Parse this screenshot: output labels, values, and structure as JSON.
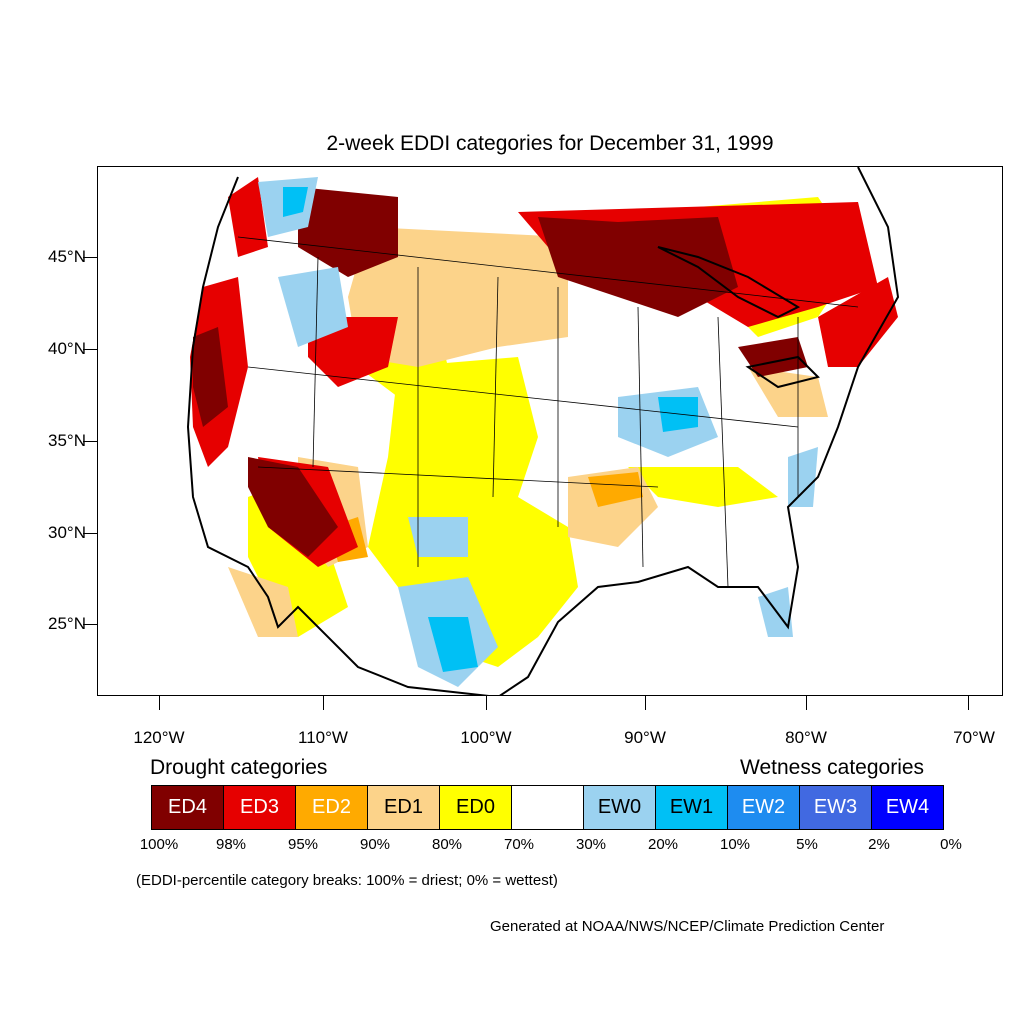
{
  "title": "2-week EDDI categories for December 31, 1999",
  "latitude_labels": [
    "45°N",
    "40°N",
    "35°N",
    "30°N",
    "25°N"
  ],
  "longitude_labels": [
    "120°W",
    "110°W",
    "100°W",
    "90°W",
    "80°W",
    "70°W"
  ],
  "legend": {
    "drought_heading": "Drought categories",
    "wetness_heading": "Wetness categories",
    "categories": [
      {
        "label": "ED4",
        "color": "#800000",
        "text_color": "#ffffff"
      },
      {
        "label": "ED3",
        "color": "#e60000",
        "text_color": "#ffffff"
      },
      {
        "label": "ED2",
        "color": "#ffaa00",
        "text_color": "#ffffff"
      },
      {
        "label": "ED1",
        "color": "#fcd38a",
        "text_color": "#000000"
      },
      {
        "label": "ED0",
        "color": "#ffff00",
        "text_color": "#000000"
      },
      {
        "label": "",
        "color": "#ffffff",
        "text_color": "#000000"
      },
      {
        "label": "EW0",
        "color": "#9bd2f0",
        "text_color": "#000000"
      },
      {
        "label": "EW1",
        "color": "#00c0f5",
        "text_color": "#000000"
      },
      {
        "label": "EW2",
        "color": "#1e8cf0",
        "text_color": "#ffffff"
      },
      {
        "label": "EW3",
        "color": "#4169e1",
        "text_color": "#ffffff"
      },
      {
        "label": "EW4",
        "color": "#0000ff",
        "text_color": "#ffffff"
      }
    ],
    "breaks": [
      "100%",
      "98%",
      "95%",
      "90%",
      "80%",
      "70%",
      "30%",
      "20%",
      "10%",
      "5%",
      "2%",
      "0%"
    ]
  },
  "note": "(EDDI-percentile category breaks: 100% = driest; 0% = wettest)",
  "credit": "Generated at NOAA/NWS/NCEP/Climate Prediction Center"
}
